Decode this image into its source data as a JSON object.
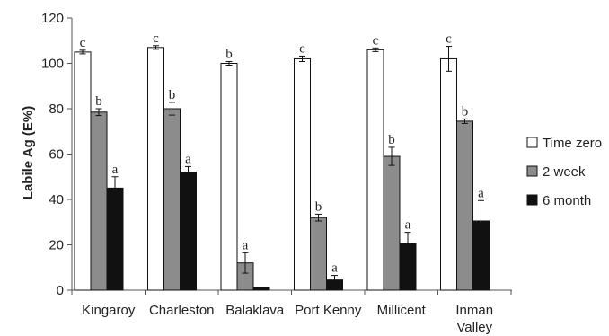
{
  "chart_data": {
    "type": "bar",
    "ylabel": "Labile Ag (E%)",
    "ylim": [
      0,
      120
    ],
    "yticks": [
      0,
      20,
      40,
      60,
      80,
      100,
      120
    ],
    "grid": false,
    "legend_position": "right",
    "categories": [
      [
        "Kingaroy"
      ],
      [
        "Charleston"
      ],
      [
        "Balaklava"
      ],
      [
        "Port Kenny"
      ],
      [
        "Millicent"
      ],
      [
        "Inman",
        "Valley"
      ]
    ],
    "series": [
      {
        "name": "Time zero",
        "color": "#ffffff",
        "values": [
          105,
          107,
          100,
          102,
          106,
          102
        ],
        "errors": [
          0.8,
          0.8,
          0.8,
          1.2,
          0.8,
          5.5
        ],
        "sig": [
          "c",
          "c",
          "b",
          "c",
          "c",
          "c"
        ]
      },
      {
        "name": "2 week",
        "color": "#8c8c8c",
        "values": [
          78.5,
          80,
          12,
          32,
          59,
          74.5
        ],
        "errors": [
          1.5,
          2.8,
          4.5,
          1.5,
          4,
          1
        ],
        "sig": [
          "b",
          "b",
          "a",
          "b",
          "b",
          "b"
        ]
      },
      {
        "name": "6 month",
        "color": "#111111",
        "values": [
          45,
          52,
          1,
          4.5,
          20.5,
          30.5
        ],
        "errors": [
          5,
          2.5,
          0,
          2,
          5,
          9
        ],
        "sig": [
          "a",
          "a",
          "",
          "a",
          "a",
          "a"
        ]
      }
    ]
  }
}
